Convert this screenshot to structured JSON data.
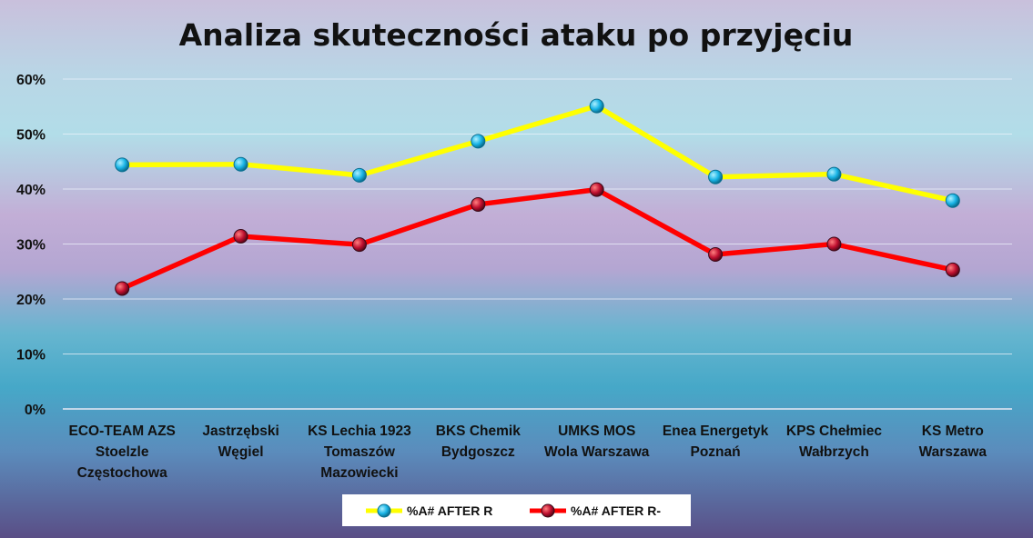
{
  "chart_data": {
    "type": "line",
    "title": "Analiza skuteczności ataku po przyjęciu",
    "xlabel": "",
    "ylabel": "",
    "categories": [
      [
        "ECO-TEAM AZS",
        "Stoelzle",
        "Częstochowa"
      ],
      [
        "Jastrzębski",
        "Węgiel"
      ],
      [
        "KS Lechia 1923",
        "Tomaszów",
        "Mazowiecki"
      ],
      [
        "BKS Chemik",
        "Bydgoszcz"
      ],
      [
        "UMKS MOS",
        "Wola Warszawa"
      ],
      [
        "Enea Energetyk",
        "Poznań"
      ],
      [
        "KPS Chełmiec",
        "Wałbrzych"
      ],
      [
        "KS Metro",
        "Warszawa"
      ]
    ],
    "ylim": [
      0,
      0.6
    ],
    "yticks": [
      0,
      0.1,
      0.2,
      0.3,
      0.4,
      0.5,
      0.6
    ],
    "ytick_labels": [
      "0%",
      "10%",
      "20%",
      "30%",
      "40%",
      "50%",
      "60%"
    ],
    "grid": true,
    "legend_position": "bottom",
    "series": [
      {
        "name": "%A# AFTER  R",
        "color": "#ffff00",
        "marker_color": "#1ab8e8",
        "values": [
          0.444,
          0.445,
          0.425,
          0.487,
          0.551,
          0.422,
          0.427,
          0.379
        ]
      },
      {
        "name": "%A# AFTER  R-",
        "color": "#ff0000",
        "marker_color": "#b0102a",
        "values": [
          0.219,
          0.314,
          0.299,
          0.372,
          0.399,
          0.281,
          0.3,
          0.253
        ]
      }
    ]
  }
}
